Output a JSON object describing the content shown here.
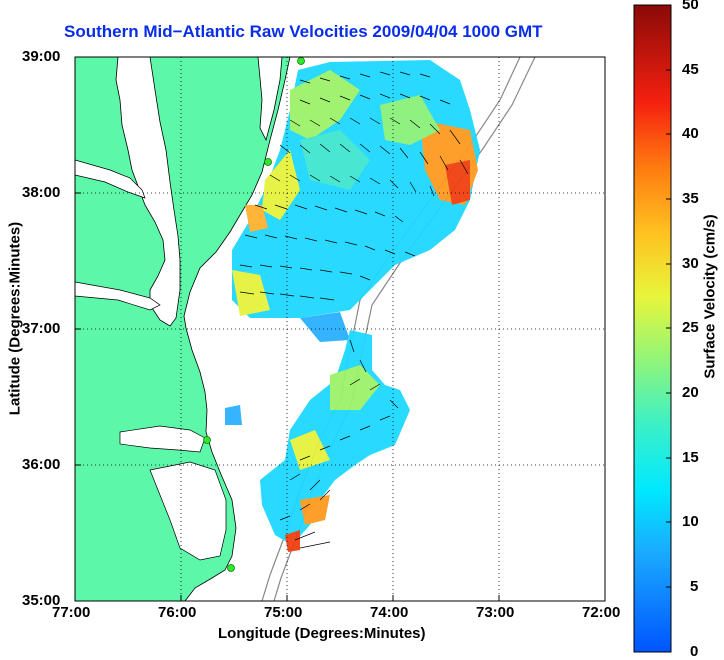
{
  "title": "Southern Mid−Atlantic Raw Velocities 2009/04/04 1000 GMT",
  "x_axis": {
    "label": "Longitude (Degrees:Minutes)",
    "ticks": [
      "77:00",
      "76:00",
      "75:00",
      "74:00",
      "73:00",
      "72:00"
    ]
  },
  "y_axis": {
    "label": "Latitude (Degrees:Minutes)",
    "ticks": [
      "39:00",
      "38:00",
      "37:00",
      "36:00",
      "35:00"
    ]
  },
  "colorbar": {
    "label": "Surface Velocity (cm/s)",
    "ticks": [
      "50",
      "45",
      "40",
      "35",
      "30",
      "25",
      "20",
      "15",
      "10",
      "5",
      "0"
    ],
    "range": [
      0,
      50
    ],
    "colormap": "jet"
  },
  "colors": {
    "land": "#5cf7a8",
    "title": "#0a2ee8",
    "coast_line": "#000000",
    "bathymetry": "#888888",
    "station": "#2ee82e"
  },
  "map_extent": {
    "lon": [
      -77,
      -72
    ],
    "lat": [
      35,
      39
    ]
  },
  "stations": [
    {
      "lon": -74.99,
      "lat": 38.97
    },
    {
      "lon": -75.13,
      "lat": 38.23
    },
    {
      "lon": -75.8,
      "lat": 36.19
    },
    {
      "lon": -75.55,
      "lat": 35.25
    }
  ]
}
